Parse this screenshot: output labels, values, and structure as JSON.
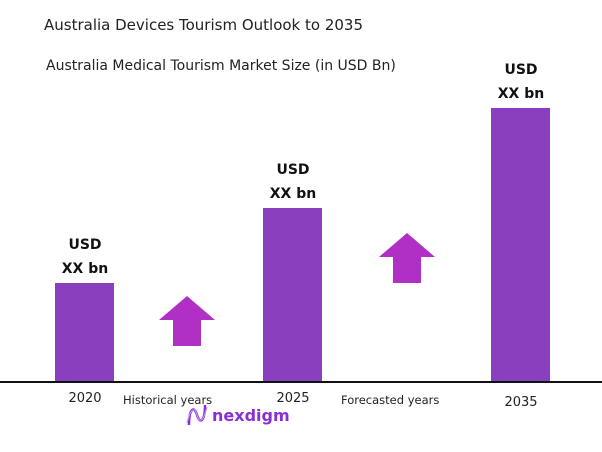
{
  "chart_data": {
    "type": "bar",
    "title": "Australia Devices Tourism Outlook to 2035",
    "subtitle": "Australia Medical Tourism Market Size (in USD Bn)",
    "categories": [
      "2020",
      "2025",
      "2035"
    ],
    "relative_values": [
      1.0,
      1.76,
      2.77
    ],
    "data_labels": [
      {
        "line1": "USD",
        "line2": "XX bn"
      },
      {
        "line1": "USD",
        "line2": "XX bn"
      },
      {
        "line1": "USD",
        "line2": "XX bn"
      }
    ],
    "period_labels": [
      "Historical years",
      "Forecasted years"
    ],
    "grid": false,
    "legend": "none"
  },
  "colors": {
    "bar": "#8a3fbf",
    "arrow": "#b02fc4",
    "axis": "#111111"
  },
  "logo": {
    "text": "nexdigm"
  }
}
